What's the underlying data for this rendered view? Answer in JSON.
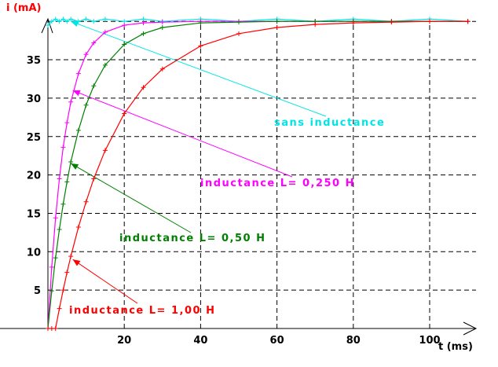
{
  "chart_data": {
    "type": "line",
    "title": "",
    "xlabel": "t (ms)",
    "ylabel": "i (mA)",
    "xlim": [
      0,
      112
    ],
    "ylim": [
      0,
      40.5
    ],
    "grid": true,
    "xticks": [
      20,
      40,
      60,
      80,
      100
    ],
    "yticks": [
      5,
      10,
      15,
      20,
      25,
      30,
      35
    ],
    "x": [
      0,
      1,
      2,
      3,
      4,
      5,
      6,
      8,
      10,
      12,
      15,
      20,
      25,
      30,
      40,
      50,
      60,
      70,
      80,
      90,
      100,
      110
    ],
    "series": [
      {
        "name": "sans inductance",
        "color": "#00e5e5",
        "values": [
          39.5,
          40,
          40.3,
          40,
          40.3,
          40,
          40.3,
          40,
          40.3,
          40,
          40.3,
          40,
          40.3,
          40,
          40.3,
          40,
          40.3,
          40,
          40.3,
          40,
          40.3,
          40
        ]
      },
      {
        "name": "inductance L= 0,250 H",
        "color": "#ff00ff",
        "values": [
          0,
          8.0,
          14.4,
          19.5,
          23.6,
          26.8,
          29.5,
          33.2,
          35.7,
          37.2,
          38.6,
          39.5,
          39.8,
          39.9,
          40,
          40,
          40,
          40,
          40,
          40,
          40,
          40
        ]
      },
      {
        "name": "inductance L= 0,50 H",
        "color": "#008000",
        "values": [
          0,
          4.9,
          9.2,
          12.9,
          16.2,
          19.1,
          21.7,
          25.8,
          29.1,
          31.6,
          34.3,
          37.0,
          38.4,
          39.2,
          39.8,
          39.9,
          40,
          40,
          40,
          40,
          40,
          40
        ]
      },
      {
        "name": "inductance L= 1,00 H",
        "color": "#ff0000",
        "values": [
          0,
          0,
          0,
          2.6,
          5.0,
          7.3,
          9.4,
          13.2,
          16.5,
          19.5,
          23.2,
          28.0,
          31.4,
          33.8,
          36.8,
          38.4,
          39.2,
          39.6,
          39.8,
          39.9,
          40,
          40
        ]
      }
    ],
    "annotations": [
      {
        "text": "sans inductance",
        "color": "#00e5e5",
        "points_to": [
          6,
          40
        ]
      },
      {
        "text": "inductance L= 0,250 H",
        "color": "#ff00ff",
        "points_to": [
          6.5,
          31
        ]
      },
      {
        "text": "inductance L= 0,50 H",
        "color": "#008000",
        "points_to": [
          6,
          21.5
        ]
      },
      {
        "text": "inductance L= 1,00 H",
        "color": "#ff0000",
        "points_to": [
          6.5,
          9
        ]
      }
    ]
  }
}
